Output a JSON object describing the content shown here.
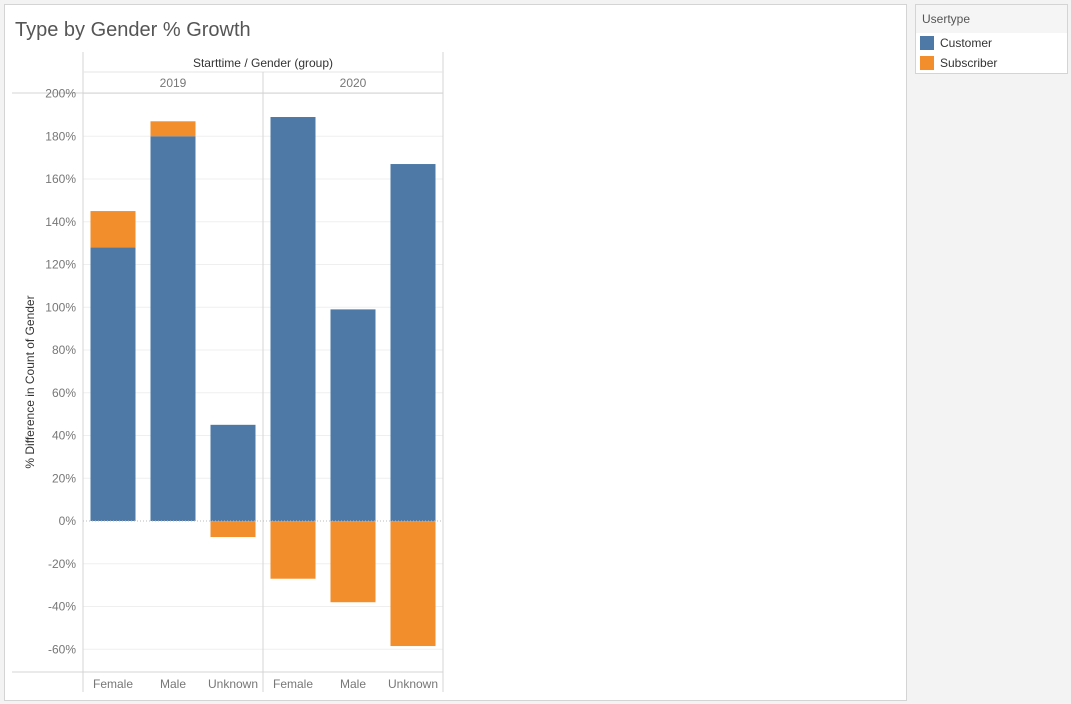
{
  "chart_data": {
    "type": "bar",
    "stacked": true,
    "title": "Type by Gender % Growth",
    "column_header": "Starttime / Gender (group)",
    "ylabel": "% Difference in Count of Gender",
    "ylim": [
      -70,
      200
    ],
    "yticks": [
      "200%",
      "180%",
      "160%",
      "140%",
      "120%",
      "100%",
      "80%",
      "60%",
      "40%",
      "20%",
      "0%",
      "-20%",
      "-40%",
      "-60%"
    ],
    "ytick_values": [
      200,
      180,
      160,
      140,
      120,
      100,
      80,
      60,
      40,
      20,
      0,
      -20,
      -40,
      -60
    ],
    "groups": [
      {
        "label": "2019",
        "categories": [
          "Female",
          "Male",
          "Unknown"
        ],
        "series": [
          {
            "name": "Customer",
            "values": [
              128,
              180,
              45
            ]
          },
          {
            "name": "Subscriber",
            "values": [
              17,
              7,
              -7.5
            ]
          }
        ]
      },
      {
        "label": "2020",
        "categories": [
          "Female",
          "Male",
          "Unknown"
        ],
        "series": [
          {
            "name": "Customer",
            "values": [
              189,
              99,
              167
            ]
          },
          {
            "name": "Subscriber",
            "values": [
              -27,
              -38,
              -58.5
            ]
          }
        ]
      }
    ],
    "grid": true,
    "legend_position": "right"
  },
  "legend": {
    "title": "Usertype",
    "items": [
      {
        "label": "Customer",
        "color": "#4e79a7"
      },
      {
        "label": "Subscriber",
        "color": "#f28e2b"
      }
    ]
  }
}
